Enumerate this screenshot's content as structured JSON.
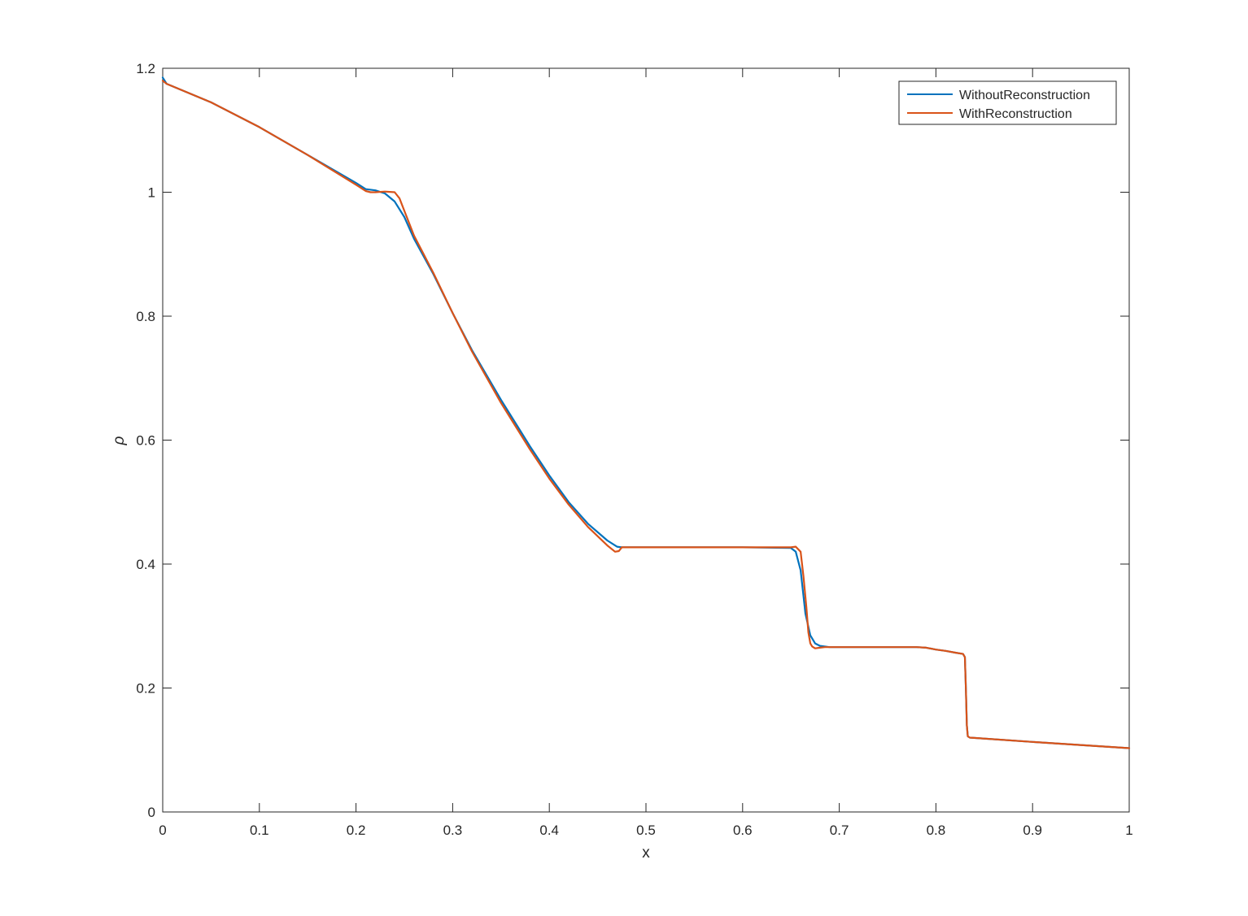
{
  "chart_data": {
    "type": "line",
    "title": "",
    "xlabel": "x",
    "ylabel": "ρ",
    "xlim": [
      0,
      1
    ],
    "ylim": [
      0,
      1.2
    ],
    "xticks": [
      0,
      0.1,
      0.2,
      0.3,
      0.4,
      0.5,
      0.6,
      0.7,
      0.8,
      0.9,
      1
    ],
    "xtick_labels": [
      "0",
      "0.1",
      "0.2",
      "0.3",
      "0.4",
      "0.5",
      "0.6",
      "0.7",
      "0.8",
      "0.9",
      "1"
    ],
    "yticks": [
      0,
      0.2,
      0.4,
      0.6,
      0.8,
      1,
      1.2
    ],
    "ytick_labels": [
      "0",
      "0.2",
      "0.4",
      "0.6",
      "0.8",
      "1",
      "1.2"
    ],
    "grid": false,
    "legend_position": "top-right",
    "series": [
      {
        "name": "WithoutReconstruction",
        "color": "#0072BD",
        "x": [
          0,
          0.004,
          0.05,
          0.1,
          0.15,
          0.2,
          0.21,
          0.22,
          0.23,
          0.24,
          0.25,
          0.26,
          0.28,
          0.3,
          0.32,
          0.35,
          0.38,
          0.4,
          0.42,
          0.44,
          0.46,
          0.47,
          0.475,
          0.48,
          0.5,
          0.6,
          0.65,
          0.655,
          0.66,
          0.665,
          0.67,
          0.675,
          0.68,
          0.69,
          0.7,
          0.78,
          0.79,
          0.8,
          0.81,
          0.82,
          0.828,
          0.83,
          0.831,
          0.832,
          0.833,
          0.835,
          0.9,
          1.0
        ],
        "y": [
          1.185,
          1.175,
          1.145,
          1.105,
          1.06,
          1.015,
          1.005,
          1.003,
          0.998,
          0.985,
          0.96,
          0.925,
          0.868,
          0.805,
          0.745,
          0.665,
          0.59,
          0.543,
          0.5,
          0.465,
          0.438,
          0.428,
          0.427,
          0.427,
          0.427,
          0.427,
          0.426,
          0.42,
          0.39,
          0.32,
          0.285,
          0.272,
          0.268,
          0.266,
          0.266,
          0.266,
          0.265,
          0.262,
          0.26,
          0.257,
          0.255,
          0.25,
          0.2,
          0.14,
          0.122,
          0.12,
          0.113,
          0.103
        ]
      },
      {
        "name": "WithReconstruction",
        "color": "#D95319",
        "x": [
          0,
          0.004,
          0.05,
          0.1,
          0.15,
          0.2,
          0.21,
          0.215,
          0.22,
          0.23,
          0.24,
          0.245,
          0.25,
          0.26,
          0.28,
          0.3,
          0.32,
          0.35,
          0.38,
          0.4,
          0.42,
          0.44,
          0.46,
          0.468,
          0.472,
          0.475,
          0.48,
          0.5,
          0.6,
          0.65,
          0.655,
          0.66,
          0.663,
          0.666,
          0.668,
          0.67,
          0.672,
          0.675,
          0.68,
          0.685,
          0.7,
          0.78,
          0.79,
          0.8,
          0.81,
          0.82,
          0.828,
          0.83,
          0.831,
          0.832,
          0.833,
          0.835,
          0.9,
          1.0
        ],
        "y": [
          1.18,
          1.175,
          1.145,
          1.105,
          1.06,
          1.012,
          1.002,
          1.0,
          1.0,
          1.001,
          1.0,
          0.99,
          0.97,
          0.93,
          0.87,
          0.805,
          0.743,
          0.66,
          0.585,
          0.538,
          0.496,
          0.46,
          0.43,
          0.42,
          0.421,
          0.427,
          0.427,
          0.427,
          0.427,
          0.427,
          0.428,
          0.42,
          0.38,
          0.33,
          0.29,
          0.272,
          0.267,
          0.264,
          0.265,
          0.266,
          0.266,
          0.266,
          0.265,
          0.262,
          0.26,
          0.257,
          0.255,
          0.25,
          0.2,
          0.14,
          0.122,
          0.12,
          0.113,
          0.103
        ]
      }
    ]
  }
}
